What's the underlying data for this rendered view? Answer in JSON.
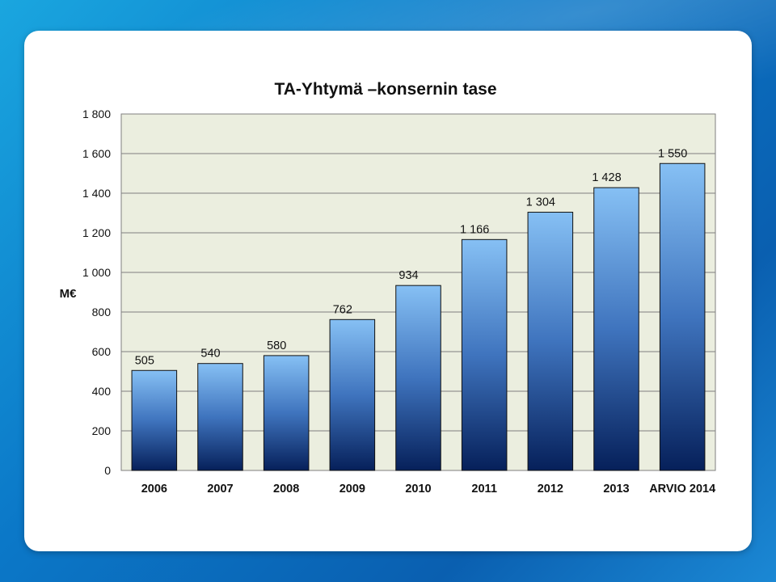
{
  "chart_data": {
    "type": "bar",
    "title": "TA-Yhtymä –konsernin tase",
    "ylabel": "M€",
    "xlabel": "",
    "categories": [
      "2006",
      "2007",
      "2008",
      "2009",
      "2010",
      "2011",
      "2012",
      "2013",
      "ARVIO 2014"
    ],
    "values": [
      505,
      540,
      580,
      762,
      934,
      1166,
      1304,
      1428,
      1550
    ],
    "value_labels": [
      "505",
      "540",
      "580",
      "762",
      "934",
      "1 166",
      "1 304",
      "1 428",
      "1 550"
    ],
    "ylim": [
      0,
      1800
    ],
    "yticks": [
      0,
      200,
      400,
      600,
      800,
      1000,
      1200,
      1400,
      1600,
      1800
    ],
    "ytick_labels": [
      "0",
      "200",
      "400",
      "600",
      "800",
      "1 000",
      "1 200",
      "1 400",
      "1 600",
      "1 800"
    ],
    "grid": true,
    "legend": "none",
    "colors": {
      "plot_background": "#ebeedf",
      "bar_top": "#86c0f4",
      "bar_bottom": "#06205a",
      "gridline": "#7f7f7f"
    }
  }
}
